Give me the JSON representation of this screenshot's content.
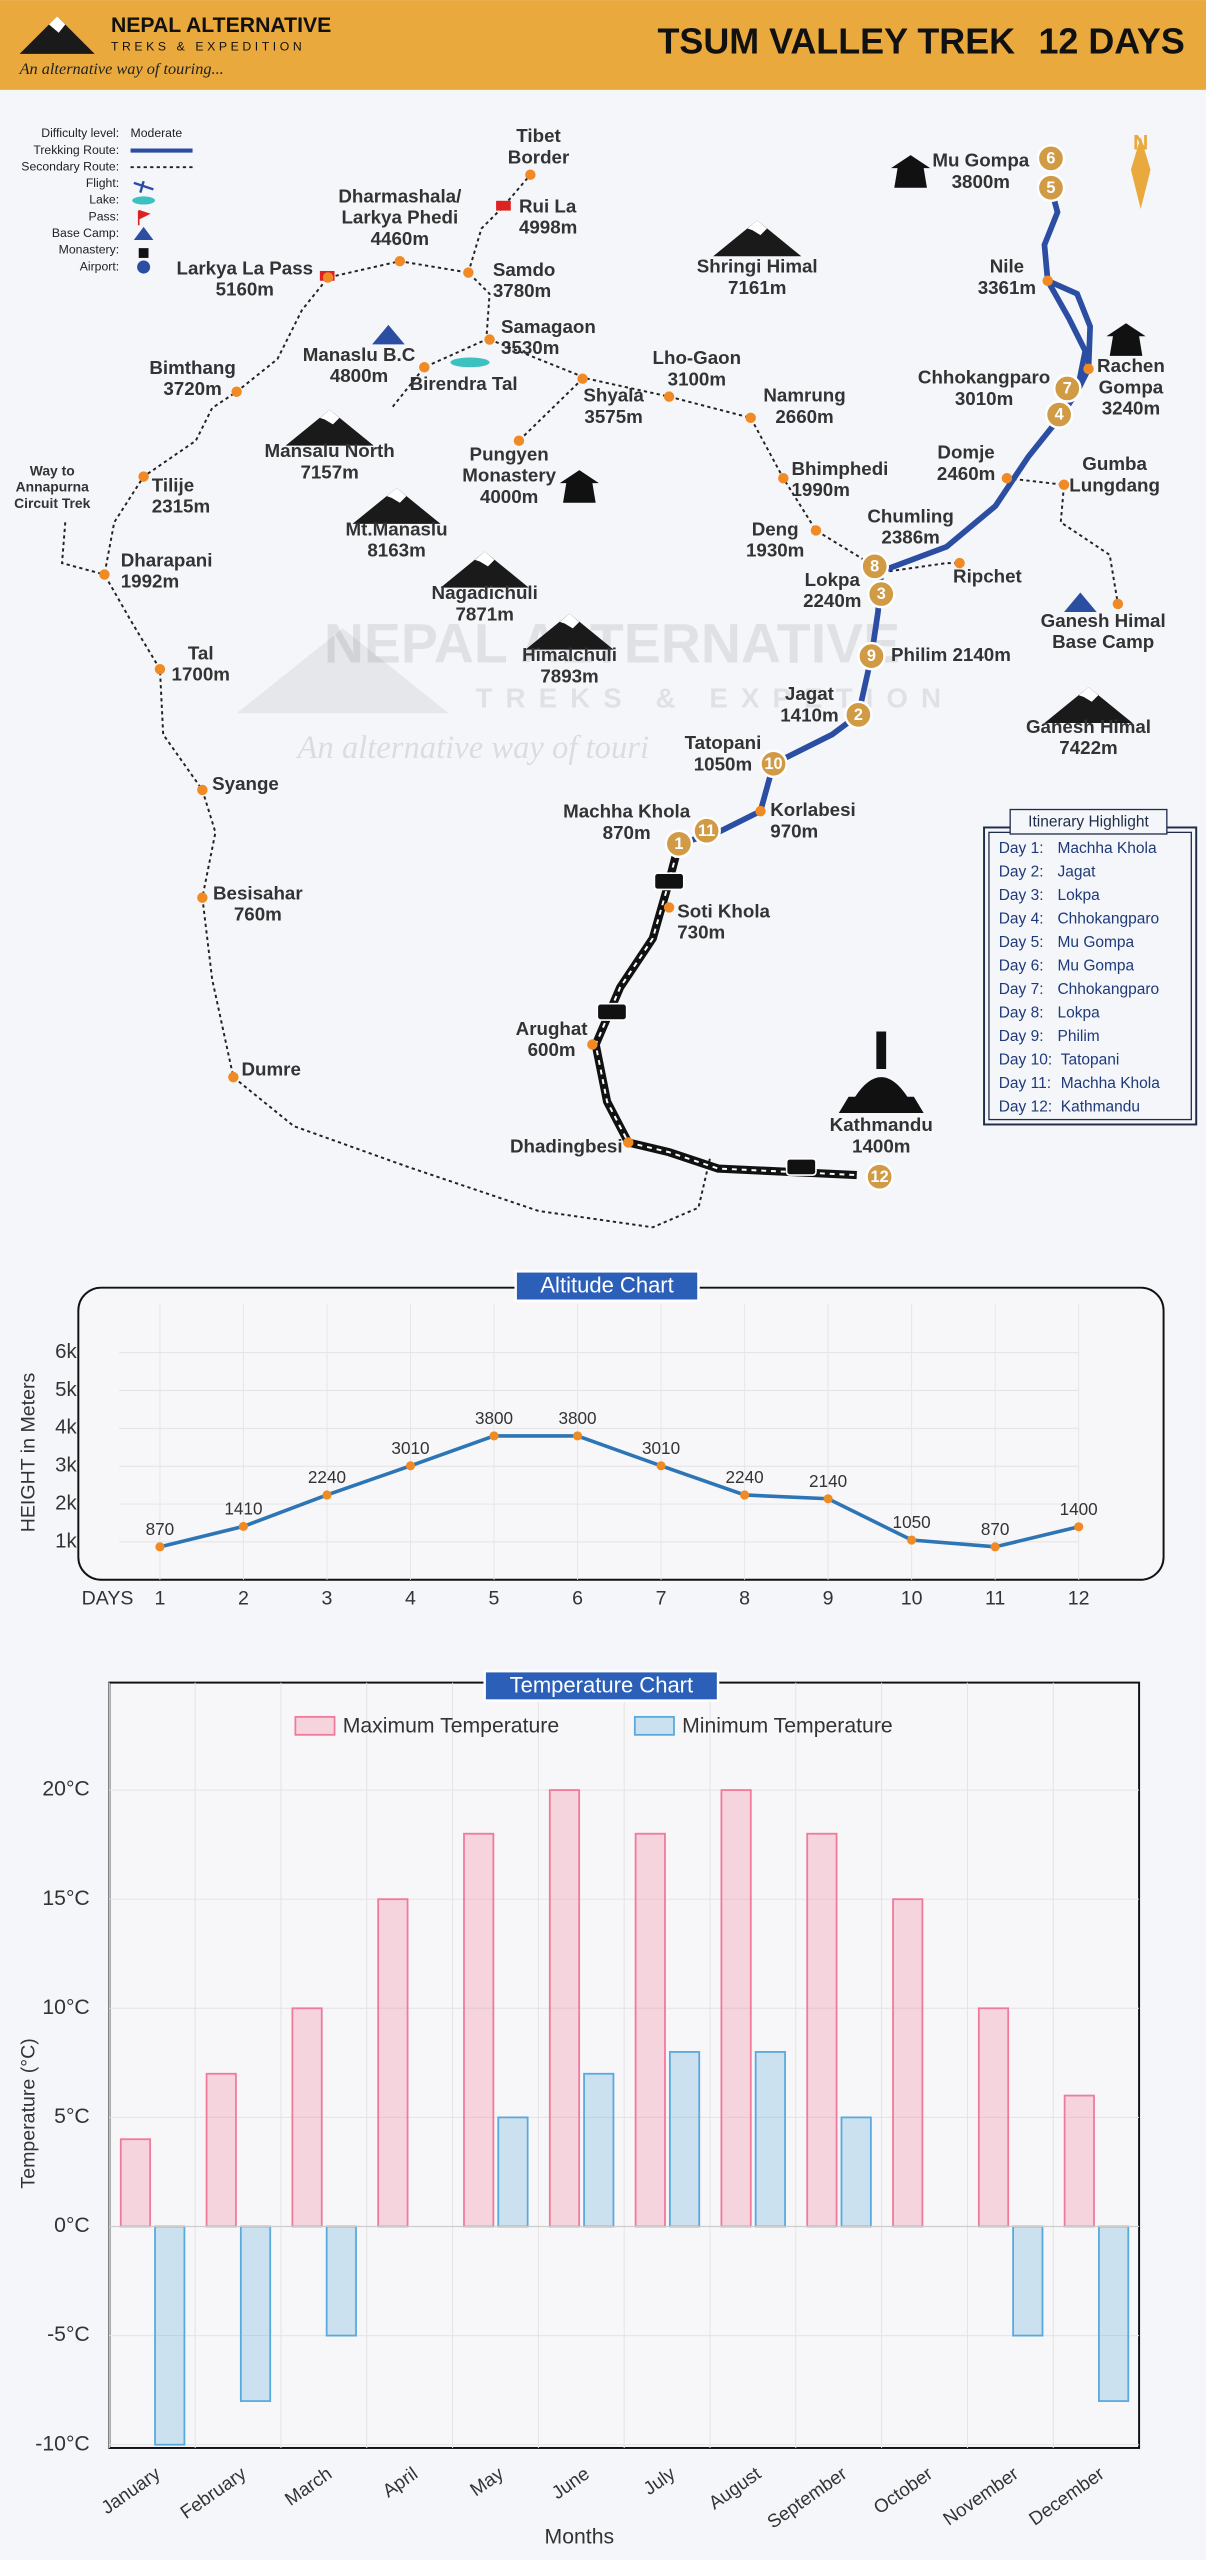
{
  "header": {
    "brand": "NEPAL ALTERNATIVE",
    "brand_sub": "TREKS & EXPEDITION",
    "tagline": "An alternative way of touring...",
    "title": "TSUM VALLEY TREK",
    "duration": "12 DAYS"
  },
  "legend": [
    {
      "label": "Difficulty level:",
      "value": "Moderate"
    },
    {
      "label": "Trekking Route:"
    },
    {
      "label": "Secondary Route:"
    },
    {
      "label": "Flight:"
    },
    {
      "label": "Lake:"
    },
    {
      "label": "Pass:"
    },
    {
      "label": "Base Camp:"
    },
    {
      "label": "Monastery:"
    },
    {
      "label": "Airport:"
    }
  ],
  "map": {
    "north": "N",
    "watermark": [
      "NEPAL ALTERNATIVE",
      "TREKS & EXPETION",
      "An alternative way of touri"
    ],
    "places": [
      {
        "lines": [
          "Tibet",
          "Border"
        ]
      },
      {
        "lines": [
          "Rui La",
          "4998m"
        ]
      },
      {
        "lines": [
          "Dharmashala/",
          "Larkya Phedi",
          "4460m"
        ]
      },
      {
        "lines": [
          "Larkya La Pass",
          "5160m"
        ]
      },
      {
        "lines": [
          "Samdo",
          "3780m"
        ]
      },
      {
        "lines": [
          "Samagaon",
          "3530m"
        ]
      },
      {
        "lines": [
          "Manaslu B.C",
          "4800m"
        ]
      },
      {
        "lines": [
          "Birendra Tal"
        ]
      },
      {
        "lines": [
          "Bimthang",
          "3720m"
        ]
      },
      {
        "lines": [
          "Shringi Himal",
          "7161m"
        ]
      },
      {
        "lines": [
          "Lho-Gaon",
          "3100m"
        ]
      },
      {
        "lines": [
          "Shyala",
          "3575m"
        ]
      },
      {
        "lines": [
          "Namrung",
          "2660m"
        ]
      },
      {
        "lines": [
          "Pungyen",
          "Monastery",
          "4000m"
        ]
      },
      {
        "lines": [
          "Mansalu North",
          "7157m"
        ]
      },
      {
        "lines": [
          "Way to",
          "Annapurna",
          "Circuit Trek"
        ]
      },
      {
        "lines": [
          "Tilije",
          "2315m"
        ]
      },
      {
        "lines": [
          "Bhimphedi",
          "1990m"
        ]
      },
      {
        "lines": [
          "Mt.Manaslu",
          "8163m"
        ]
      },
      {
        "lines": [
          "Deng",
          "1930m"
        ]
      },
      {
        "lines": [
          "Chumling",
          "2386m"
        ]
      },
      {
        "lines": [
          "Dharapani",
          "1992m"
        ]
      },
      {
        "lines": [
          "Nagadichuli",
          "7871m"
        ]
      },
      {
        "lines": [
          "Lokpa",
          "2240m"
        ]
      },
      {
        "lines": [
          "Ripchet"
        ]
      },
      {
        "lines": [
          "Himalchuli",
          "7893m"
        ]
      },
      {
        "lines": [
          "Tal",
          "1700m"
        ]
      },
      {
        "lines": [
          "Philim 2140m"
        ]
      },
      {
        "lines": [
          "Jagat",
          "1410m"
        ]
      },
      {
        "lines": [
          "Tatopani",
          "1050m"
        ]
      },
      {
        "lines": [
          "Syange"
        ]
      },
      {
        "lines": [
          "Korlabesi",
          "970m"
        ]
      },
      {
        "lines": [
          "Machha Khola",
          "870m"
        ]
      },
      {
        "lines": [
          "Soti Khola",
          "730m"
        ]
      },
      {
        "lines": [
          "Besisahar",
          "760m"
        ]
      },
      {
        "lines": [
          "Arughat",
          "600m"
        ]
      },
      {
        "lines": [
          "Dumre"
        ]
      },
      {
        "lines": [
          "Dhadingbesi"
        ]
      },
      {
        "lines": [
          "Kathmandu",
          "1400m"
        ]
      },
      {
        "lines": [
          "Mu Gompa",
          "3800m"
        ]
      },
      {
        "lines": [
          "Nile",
          "3361m"
        ]
      },
      {
        "lines": [
          "Chhokangparo",
          "3010m"
        ]
      },
      {
        "lines": [
          "Rachen",
          "Gompa",
          "3240m"
        ]
      },
      {
        "lines": [
          "Domje",
          "2460m"
        ]
      },
      {
        "lines": [
          "Gumba",
          "Lungdang"
        ]
      },
      {
        "lines": [
          "Ganesh Himal",
          "Base Camp"
        ]
      },
      {
        "lines": [
          "Ganesh Himal",
          "7422m"
        ]
      }
    ],
    "day_markers": [
      1,
      11,
      10,
      2,
      9,
      3,
      8,
      4,
      7,
      5,
      6,
      12
    ]
  },
  "itinerary": {
    "title": "Itinerary Highlight",
    "items": [
      {
        "day": "Day 1:",
        "place": "Machha Khola"
      },
      {
        "day": "Day 2:",
        "place": "Jagat"
      },
      {
        "day": "Day 3:",
        "place": "Lokpa"
      },
      {
        "day": "Day 4:",
        "place": "Chhokangparo"
      },
      {
        "day": "Day 5:",
        "place": "Mu Gompa"
      },
      {
        "day": "Day 6:",
        "place": "Mu Gompa"
      },
      {
        "day": "Day 7:",
        "place": "Chhokangparo"
      },
      {
        "day": "Day 8:",
        "place": "Lokpa"
      },
      {
        "day": "Day 9:",
        "place": "Philim"
      },
      {
        "day": "Day 10:",
        "place": "Tatopani"
      },
      {
        "day": "Day 11:",
        "place": "Machha Khola"
      },
      {
        "day": "Day 12:",
        "place": "Kathmandu"
      }
    ]
  },
  "chart_data": [
    {
      "type": "line",
      "title": "Altitude Chart",
      "x_label": "DAYS",
      "y_label": "HEIGHT in Meters",
      "categories": [
        "1",
        "2",
        "3",
        "4",
        "5",
        "6",
        "7",
        "8",
        "9",
        "10",
        "11",
        "12"
      ],
      "values": [
        870,
        1410,
        2240,
        3010,
        3800,
        3800,
        3010,
        2240,
        2140,
        1050,
        870,
        1400
      ],
      "color": "#2e75b6",
      "marker_color": "#f08a24",
      "ylim": [
        0,
        7000
      ],
      "yticks": [
        {
          "value": 1000,
          "label": "1k"
        },
        {
          "value": 2000,
          "label": "2k"
        },
        {
          "value": 3000,
          "label": "3k"
        },
        {
          "value": 4000,
          "label": "4k"
        },
        {
          "value": 5000,
          "label": "5k"
        },
        {
          "value": 6000,
          "label": "6k"
        }
      ],
      "grid": true
    },
    {
      "type": "bar",
      "title": "Temperature Chart",
      "x_label": "Months",
      "y_label": "Temperature (°C)",
      "categories": [
        "January",
        "February",
        "March",
        "April",
        "May",
        "June",
        "July",
        "August",
        "September",
        "October",
        "November",
        "December"
      ],
      "series": [
        {
          "name": "Maximum Temperature",
          "color": "#f07a9a",
          "values": [
            4,
            7,
            10,
            15,
            18,
            20,
            18,
            20,
            18,
            15,
            10,
            6
          ]
        },
        {
          "name": "Minimum Temperature",
          "color": "#5aa9dc",
          "values": [
            -10,
            -8,
            -5,
            null,
            5,
            7,
            8,
            8,
            5,
            null,
            -5,
            -8
          ]
        }
      ],
      "ylim": [
        -10,
        25
      ],
      "yticks": [
        {
          "value": -10,
          "label": "-10°C"
        },
        {
          "value": -5,
          "label": "-5°C"
        },
        {
          "value": 0,
          "label": "0°C"
        },
        {
          "value": 5,
          "label": "5°C"
        },
        {
          "value": 10,
          "label": "10°C"
        },
        {
          "value": 15,
          "label": "15°C"
        },
        {
          "value": 20,
          "label": "20°C"
        }
      ],
      "grid": true,
      "legend": "top"
    }
  ]
}
